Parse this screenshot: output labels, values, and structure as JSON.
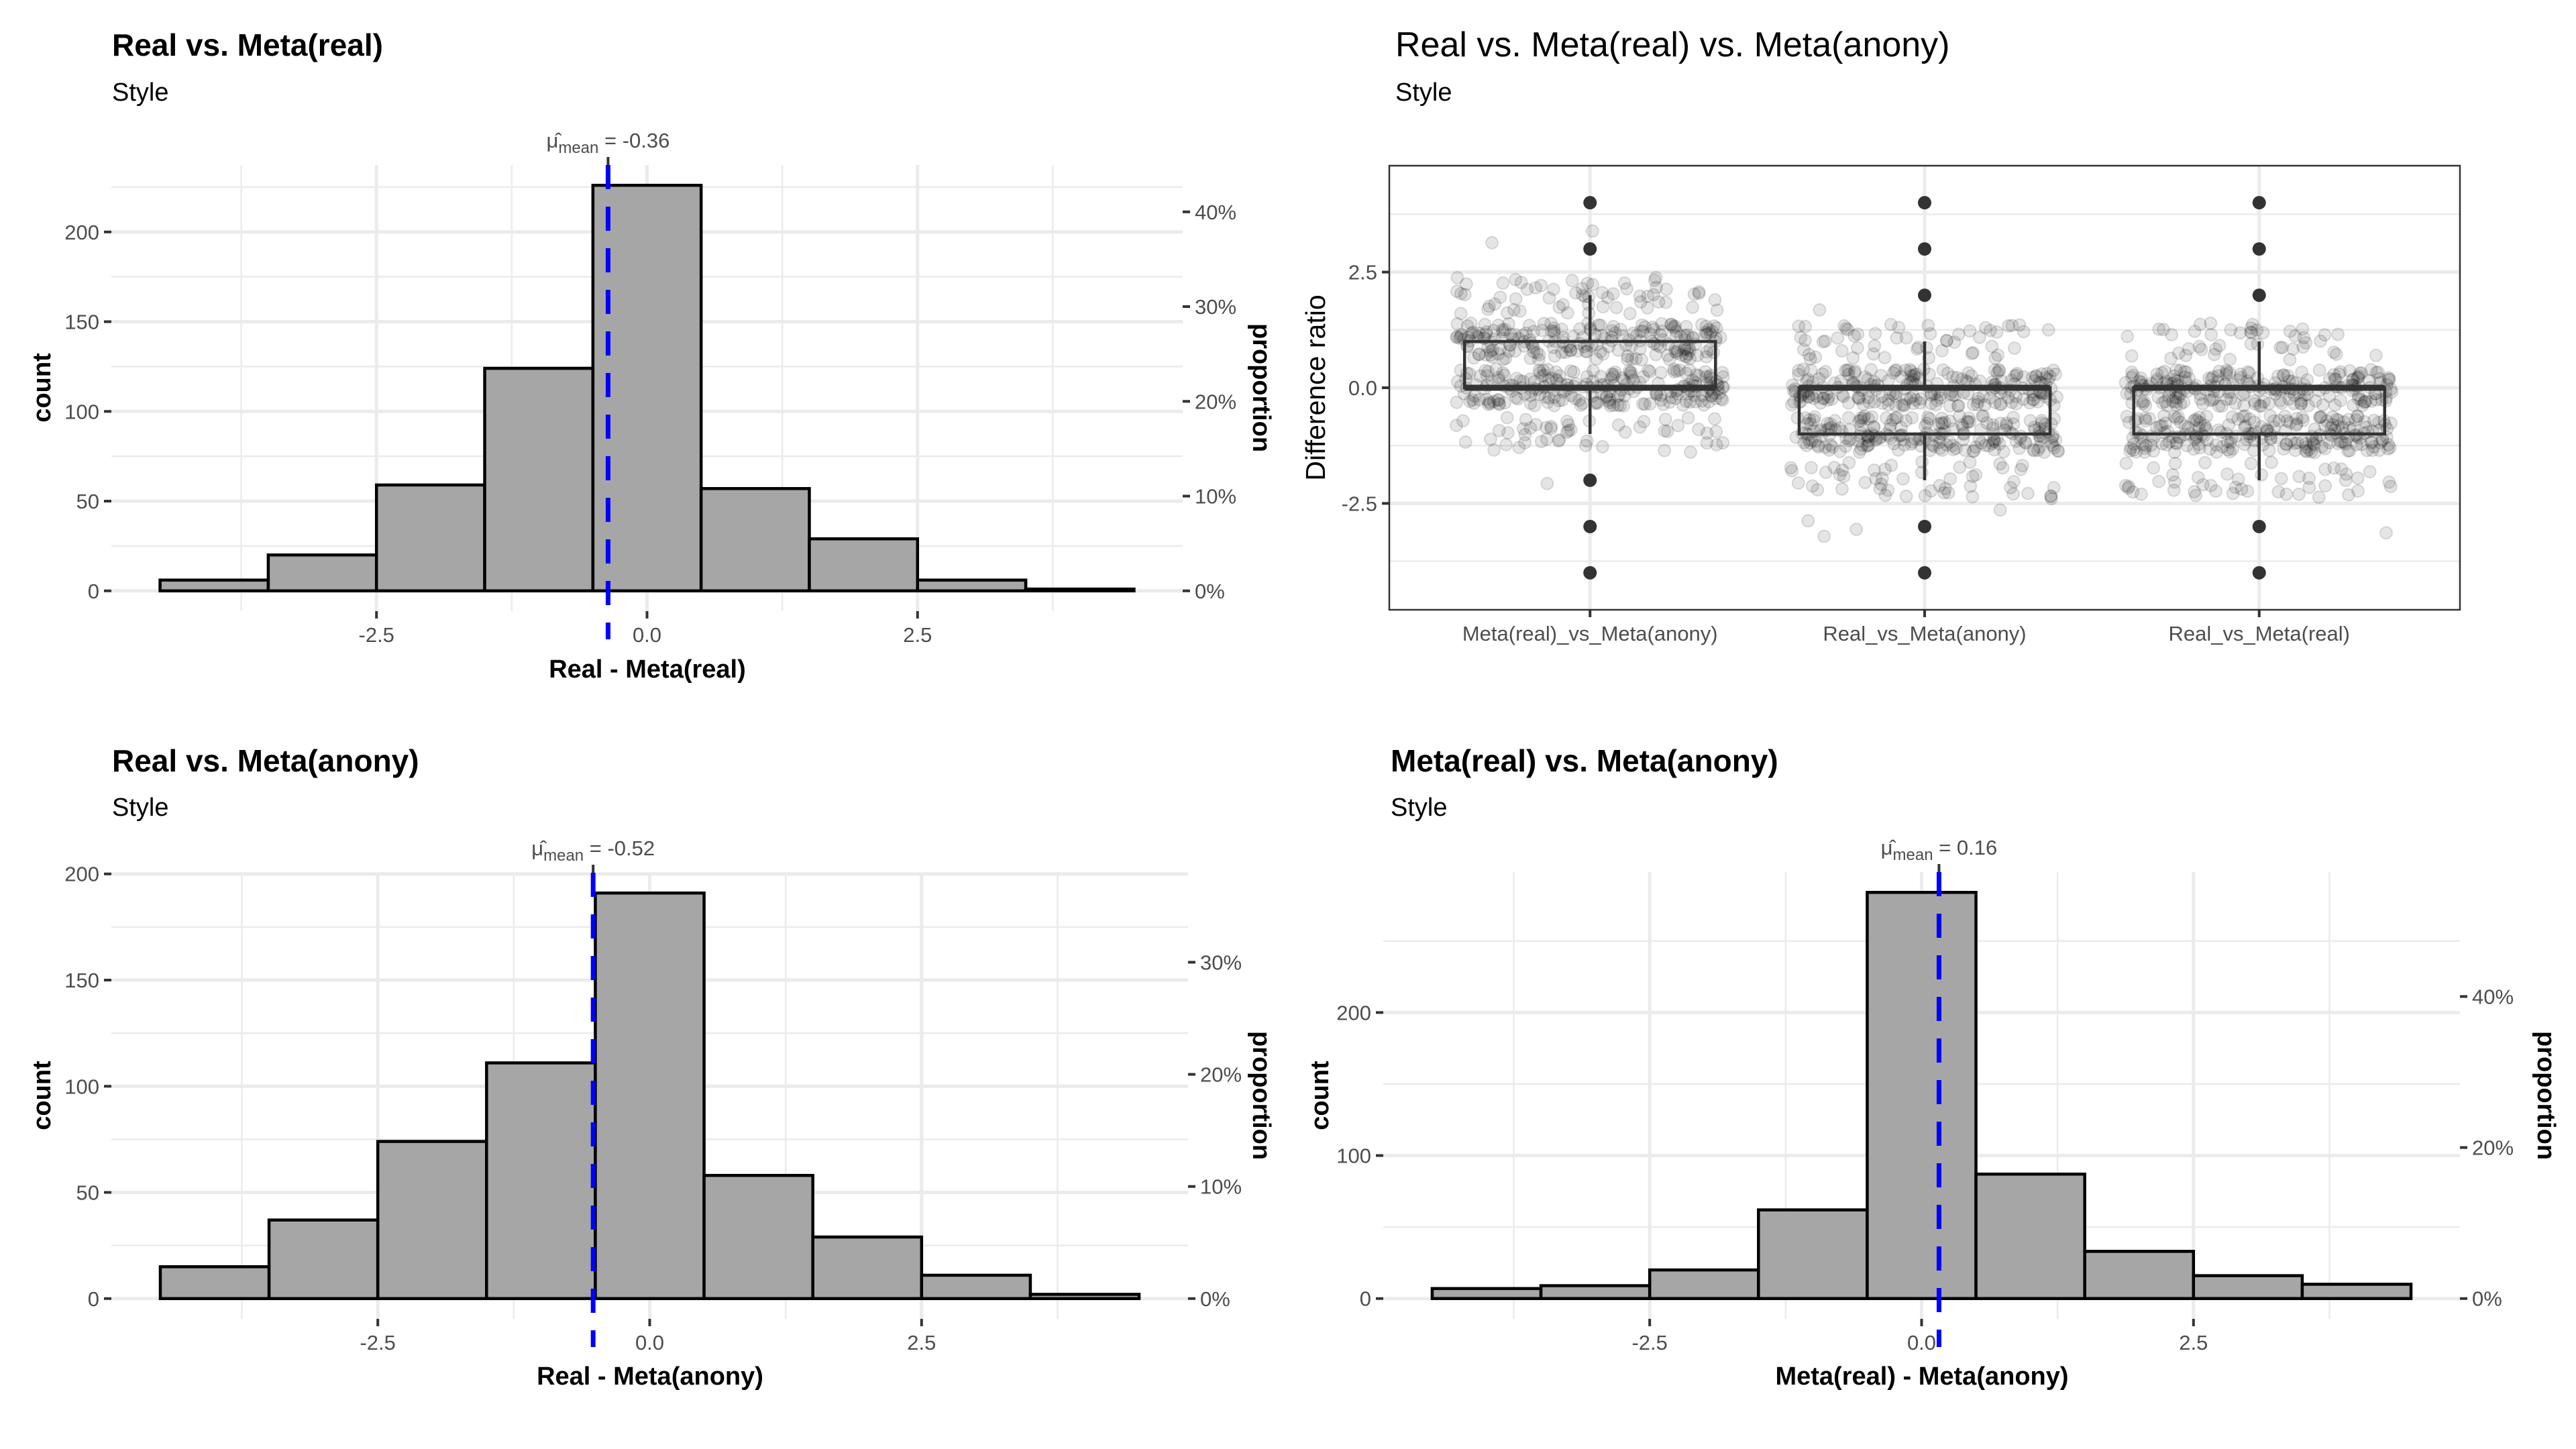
{
  "chart_data": [
    {
      "id": "hist-real-vs-meta-real",
      "type": "bar",
      "title": "Real vs. Meta(real)",
      "subtitle": "Style",
      "xlabel": "Real - Meta(real)",
      "ylabel": "count",
      "ylabel_secondary": "proportion",
      "bin_centers": [
        -4,
        -3,
        -2,
        -1,
        0,
        1,
        2,
        3,
        4
      ],
      "bin_width": 1,
      "values": [
        6,
        20,
        59,
        124,
        226,
        57,
        29,
        6,
        1
      ],
      "total": 528,
      "xlim": [
        -4.95,
        4.95
      ],
      "ylim": [
        -11.3,
        237.3
      ],
      "x_ticks": [
        -2.5,
        0,
        2.5
      ],
      "x_tick_labels": [
        "-2.5",
        "0.0",
        "2.5"
      ],
      "y_ticks": [
        0,
        50,
        100,
        150,
        200
      ],
      "y_tick_labels": [
        "0",
        "50",
        "100",
        "150",
        "200"
      ],
      "y2_ticks": [
        0,
        0.1,
        0.2,
        0.3,
        0.4
      ],
      "y2_tick_labels": [
        "0%",
        "10%",
        "20%",
        "30%",
        "40%"
      ],
      "mean": -0.36,
      "mean_label_symbol": "μ̂",
      "mean_label_sub": "mean",
      "mean_label_value": " = -0.36",
      "grid": true,
      "colors": {
        "bar_fill": "#a6a6a6",
        "bar_stroke": "#000000",
        "mean_line": "#0000ff"
      }
    },
    {
      "id": "boxplot-difference-ratio",
      "type": "box",
      "title": "Real vs. Meta(real) vs. Meta(anony)",
      "subtitle": "Style",
      "xlabel": "",
      "ylabel": "Difference ratio",
      "categories": [
        "Meta(real)_vs_Meta(anony)",
        "Real_vs_Meta(anony)",
        "Real_vs_Meta(real)"
      ],
      "boxes": [
        {
          "q1": 0,
          "median": 0,
          "q3": 1,
          "whisker_low": -1,
          "whisker_high": 2,
          "outliers": [
            4,
            3,
            -2,
            -3,
            -4
          ]
        },
        {
          "q1": -1,
          "median": 0,
          "q3": 0,
          "whisker_low": -2,
          "whisker_high": 1,
          "outliers": [
            4,
            3,
            2,
            -3,
            -4
          ]
        },
        {
          "q1": -1,
          "median": 0,
          "q3": 0,
          "whisker_low": -2,
          "whisker_high": 1,
          "outliers": [
            4,
            3,
            2,
            -3,
            -4
          ]
        }
      ],
      "jitter_points_per_group": 528,
      "ylim": [
        -4.8,
        4.8
      ],
      "y_ticks": [
        -2.5,
        0,
        2.5
      ],
      "y_tick_labels": [
        "-2.5",
        "0.0",
        "2.5"
      ],
      "grid": true,
      "colors": {
        "box_stroke": "#333333",
        "outlier": "#333333",
        "jitter": "#000000"
      }
    },
    {
      "id": "hist-real-vs-meta-anony",
      "type": "bar",
      "title": "Real vs. Meta(anony)",
      "subtitle": "Style",
      "xlabel": "Real - Meta(anony)",
      "ylabel": "count",
      "ylabel_secondary": "proportion",
      "bin_centers": [
        -4,
        -3,
        -2,
        -1,
        0,
        1,
        2,
        3,
        4
      ],
      "bin_width": 1,
      "values": [
        15,
        37,
        74,
        111,
        191,
        58,
        29,
        11,
        2
      ],
      "total": 528,
      "xlim": [
        -4.95,
        4.95
      ],
      "ylim": [
        -9.55,
        200.55
      ],
      "x_ticks": [
        -2.5,
        0,
        2.5
      ],
      "x_tick_labels": [
        "-2.5",
        "0.0",
        "2.5"
      ],
      "y_ticks": [
        0,
        50,
        100,
        150,
        200
      ],
      "y_tick_labels": [
        "0",
        "50",
        "100",
        "150",
        "200"
      ],
      "y2_ticks": [
        0,
        0.1,
        0.2,
        0.3
      ],
      "y2_tick_labels": [
        "0%",
        "10%",
        "20%",
        "30%"
      ],
      "mean": -0.52,
      "mean_label_symbol": "μ̂",
      "mean_label_sub": "mean",
      "mean_label_value": " = -0.52",
      "grid": true,
      "colors": {
        "bar_fill": "#a6a6a6",
        "bar_stroke": "#000000",
        "mean_line": "#0000ff"
      }
    },
    {
      "id": "hist-meta-real-vs-meta-anony",
      "type": "bar",
      "title": "Meta(real) vs. Meta(anony)",
      "subtitle": "Style",
      "xlabel": "Meta(real) - Meta(anony)",
      "ylabel": "count",
      "ylabel_secondary": "proportion",
      "bin_centers": [
        -4,
        -3,
        -2,
        -1,
        0,
        1,
        2,
        3,
        4
      ],
      "bin_width": 1,
      "values": [
        7,
        9,
        20,
        62,
        284,
        87,
        33,
        16,
        10
      ],
      "total": 528,
      "xlim": [
        -4.95,
        4.95
      ],
      "ylim": [
        -14.2,
        298.2
      ],
      "x_ticks": [
        -2.5,
        0,
        2.5
      ],
      "x_tick_labels": [
        "-2.5",
        "0.0",
        "2.5"
      ],
      "y_ticks": [
        0,
        100,
        200
      ],
      "y_tick_labels": [
        "0",
        "100",
        "200"
      ],
      "y2_ticks": [
        0,
        0.2,
        0.4
      ],
      "y2_tick_labels": [
        "0%",
        "20%",
        "40%"
      ],
      "mean": 0.16,
      "mean_label_symbol": "μ̂",
      "mean_label_sub": "mean",
      "mean_label_value": " = 0.16",
      "grid": true,
      "colors": {
        "bar_fill": "#a6a6a6",
        "bar_stroke": "#000000",
        "mean_line": "#0000ff"
      }
    }
  ]
}
